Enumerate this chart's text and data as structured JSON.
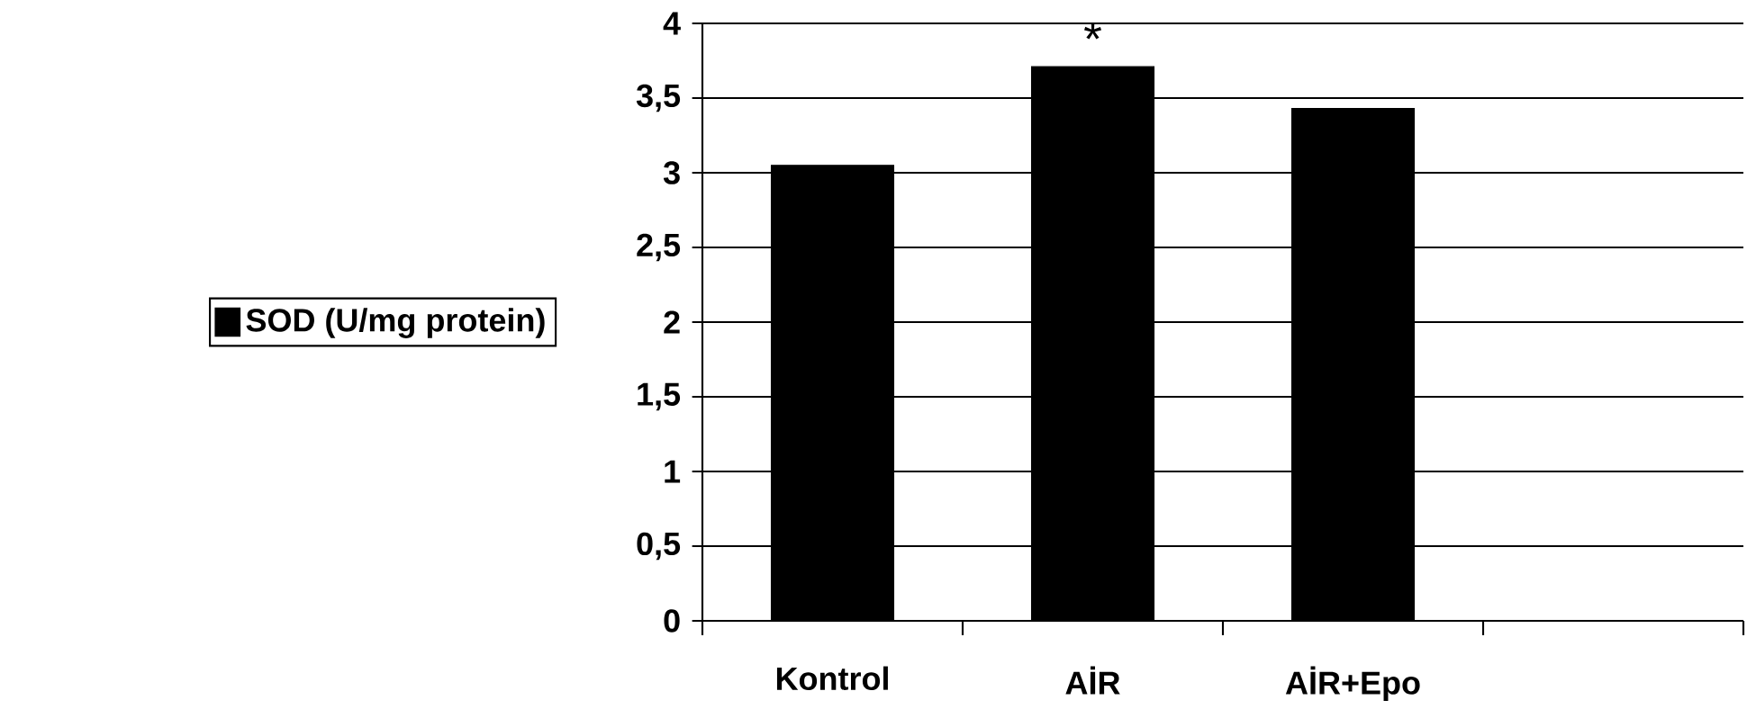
{
  "chart_data": {
    "type": "bar",
    "categories": [
      "Kontrol",
      "AİR",
      "AİR+Epo",
      null
    ],
    "series": [
      {
        "name": "SOD (U/mg protein)",
        "color": "#000000",
        "values": [
          3.05,
          3.71,
          3.43,
          null
        ]
      }
    ],
    "ylim": [
      0,
      4
    ],
    "yticks": [
      0,
      {
        "value": 0.5,
        "label": "0,5"
      },
      1,
      {
        "value": 1.5,
        "label": "1,5"
      },
      2,
      {
        "value": 2.5,
        "label": "2,5"
      },
      3,
      {
        "value": 3.5,
        "label": "3,5"
      },
      4
    ],
    "grid": "y",
    "legend": "left",
    "annotations": [
      "*"
    ]
  }
}
